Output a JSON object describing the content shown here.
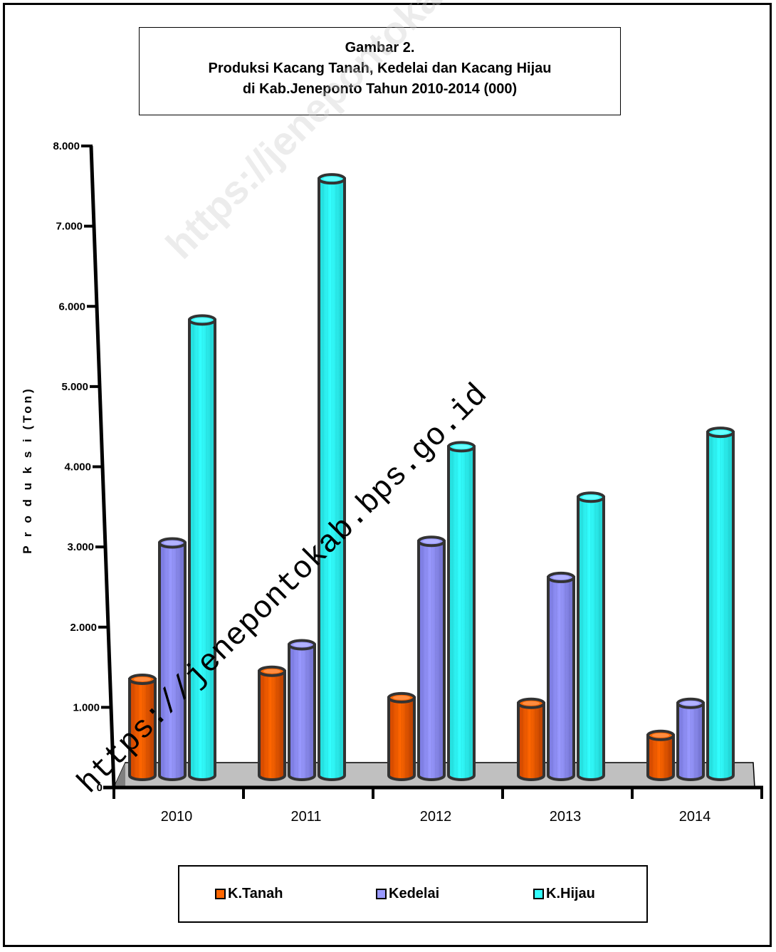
{
  "title": {
    "line1": "Gambar 2.",
    "line2": "Produksi Kacang Tanah, Kedelai dan Kacang Hijau",
    "line3": "di Kab.Jeneponto Tahun 2010-2014 (000)"
  },
  "chart_data": {
    "type": "bar",
    "categories": [
      "2010",
      "2011",
      "2012",
      "2013",
      "2014"
    ],
    "series": [
      {
        "name": "K.Tanah",
        "color": "#FF6600",
        "values": [
          1350,
          1450,
          1120,
          1050,
          650
        ]
      },
      {
        "name": "Kedelai",
        "color": "#9999FF",
        "values": [
          3050,
          1780,
          3070,
          2620,
          1050
        ]
      },
      {
        "name": "K.Hijau",
        "color": "#33FFFF",
        "values": [
          5830,
          7590,
          4250,
          3620,
          4430
        ]
      }
    ],
    "ylabel": "P r o d u k s i (Ton)",
    "xlabel": "",
    "ylim": [
      0,
      8000
    ],
    "yticks": [
      "0",
      "1.000",
      "2.000",
      "3.000",
      "4.000",
      "5.000",
      "6.000",
      "7.000",
      "8.000"
    ],
    "legend_position": "bottom",
    "grid": false
  },
  "watermarks": {
    "primary": "https://jenepontokab.bps.go.id",
    "secondary": "https://jenepontokab.bps.go.id"
  }
}
